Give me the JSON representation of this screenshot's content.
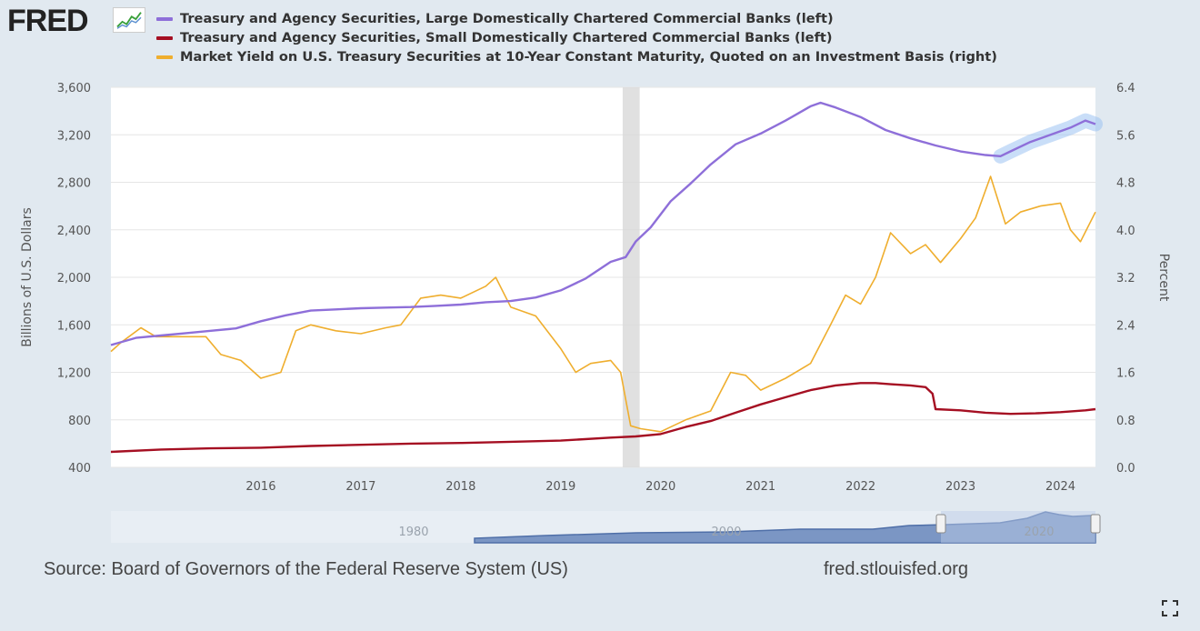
{
  "logo": {
    "text": "FRED",
    "mark_icon": "fred-graph-icon"
  },
  "legend": [
    {
      "label": "Treasury and Agency Securities, Large Domestically Chartered Commercial Banks (left)",
      "color": "#8e6fd9"
    },
    {
      "label": "Treasury and Agency Securities, Small Domestically Chartered Commercial Banks (left)",
      "color": "#a50f22"
    },
    {
      "label": "Market Yield on U.S. Treasury Securities at 10-Year Constant Maturity, Quoted on an Investment Basis (right)",
      "color": "#efae2e"
    }
  ],
  "chart_data": {
    "type": "line",
    "xlabel": "",
    "x_range": [
      2015.0,
      2024.85
    ],
    "x_ticks": [
      "2016",
      "2017",
      "2018",
      "2019",
      "2020",
      "2021",
      "2022",
      "2023",
      "2024"
    ],
    "y_left": {
      "label": "Billions of U.S. Dollars",
      "range": [
        400,
        3600
      ],
      "ticks": [
        "400",
        "800",
        "1,200",
        "1,600",
        "2,000",
        "2,400",
        "2,800",
        "3,200",
        "3,600"
      ]
    },
    "y_right": {
      "label": "Percent",
      "range": [
        0.0,
        6.4
      ],
      "ticks": [
        "0.0",
        "0.8",
        "1.6",
        "2.4",
        "3.2",
        "4.0",
        "4.8",
        "5.6",
        "6.4"
      ]
    },
    "recession": {
      "start": 2020.12,
      "end": 2020.29
    },
    "highlight": {
      "series": "Large",
      "start": 2023.9,
      "end": 2024.85
    },
    "series": [
      {
        "name": "Treasury and Agency Securities, Large Domestically Chartered Commercial Banks",
        "axis": "left",
        "color": "#8e6fd9",
        "x": [
          2015.0,
          2015.25,
          2015.5,
          2015.75,
          2016.0,
          2016.25,
          2016.5,
          2016.75,
          2017.0,
          2017.25,
          2017.5,
          2017.75,
          2018.0,
          2018.25,
          2018.5,
          2018.75,
          2019.0,
          2019.25,
          2019.5,
          2019.75,
          2020.0,
          2020.15,
          2020.25,
          2020.4,
          2020.6,
          2020.8,
          2021.0,
          2021.25,
          2021.5,
          2021.75,
          2022.0,
          2022.1,
          2022.25,
          2022.5,
          2022.75,
          2023.0,
          2023.25,
          2023.5,
          2023.75,
          2023.9,
          2024.0,
          2024.2,
          2024.4,
          2024.6,
          2024.75,
          2024.85
        ],
        "values": [
          1430,
          1490,
          1510,
          1530,
          1550,
          1570,
          1630,
          1680,
          1720,
          1730,
          1740,
          1745,
          1750,
          1760,
          1770,
          1790,
          1800,
          1830,
          1890,
          1990,
          2130,
          2170,
          2300,
          2420,
          2640,
          2790,
          2950,
          3120,
          3210,
          3320,
          3440,
          3470,
          3430,
          3350,
          3240,
          3170,
          3110,
          3060,
          3030,
          3020,
          3060,
          3140,
          3200,
          3260,
          3320,
          3290
        ]
      },
      {
        "name": "Treasury and Agency Securities, Small Domestically Chartered Commercial Banks",
        "axis": "left",
        "color": "#a50f22",
        "x": [
          2015.0,
          2015.5,
          2016.0,
          2016.5,
          2017.0,
          2017.5,
          2018.0,
          2018.5,
          2019.0,
          2019.5,
          2020.0,
          2020.25,
          2020.5,
          2020.75,
          2021.0,
          2021.25,
          2021.5,
          2021.75,
          2022.0,
          2022.25,
          2022.5,
          2022.65,
          2022.8,
          2023.0,
          2023.15,
          2023.22,
          2023.25,
          2023.5,
          2023.75,
          2024.0,
          2024.25,
          2024.5,
          2024.75,
          2024.85
        ],
        "values": [
          530,
          550,
          560,
          565,
          580,
          590,
          600,
          605,
          615,
          625,
          650,
          660,
          680,
          740,
          790,
          860,
          930,
          990,
          1050,
          1090,
          1110,
          1110,
          1100,
          1090,
          1075,
          1020,
          890,
          880,
          860,
          850,
          855,
          865,
          880,
          890
        ]
      },
      {
        "name": "Market Yield on U.S. Treasury Securities at 10-Year Constant Maturity, Quoted on an Investment Basis",
        "axis": "right",
        "color": "#efae2e",
        "x": [
          2015.0,
          2015.1,
          2015.3,
          2015.45,
          2015.6,
          2015.8,
          2015.95,
          2016.1,
          2016.3,
          2016.5,
          2016.7,
          2016.85,
          2017.0,
          2017.25,
          2017.5,
          2017.75,
          2017.9,
          2018.1,
          2018.3,
          2018.5,
          2018.75,
          2018.85,
          2019.0,
          2019.25,
          2019.5,
          2019.65,
          2019.8,
          2020.0,
          2020.1,
          2020.2,
          2020.3,
          2020.5,
          2020.75,
          2021.0,
          2021.2,
          2021.35,
          2021.5,
          2021.75,
          2022.0,
          2022.2,
          2022.35,
          2022.5,
          2022.65,
          2022.8,
          2023.0,
          2023.15,
          2023.3,
          2023.5,
          2023.65,
          2023.8,
          2023.95,
          2024.1,
          2024.3,
          2024.5,
          2024.6,
          2024.7,
          2024.85
        ],
        "values": [
          1.95,
          2.1,
          2.35,
          2.2,
          2.2,
          2.2,
          2.2,
          1.9,
          1.8,
          1.5,
          1.6,
          2.3,
          2.4,
          2.3,
          2.25,
          2.35,
          2.4,
          2.85,
          2.9,
          2.85,
          3.05,
          3.2,
          2.7,
          2.55,
          2.0,
          1.6,
          1.75,
          1.8,
          1.6,
          0.7,
          0.65,
          0.6,
          0.8,
          0.95,
          1.6,
          1.55,
          1.3,
          1.5,
          1.75,
          2.4,
          2.9,
          2.75,
          3.2,
          3.95,
          3.6,
          3.75,
          3.45,
          3.85,
          4.2,
          4.9,
          4.1,
          4.3,
          4.4,
          4.45,
          4.0,
          3.8,
          4.3
        ]
      }
    ]
  },
  "navigator": {
    "labels": [
      "1980",
      "2000",
      "2020"
    ]
  },
  "footer": {
    "source": "Source: Board of Governors of the Federal Reserve System (US)",
    "site": "fred.stlouisfed.org"
  }
}
